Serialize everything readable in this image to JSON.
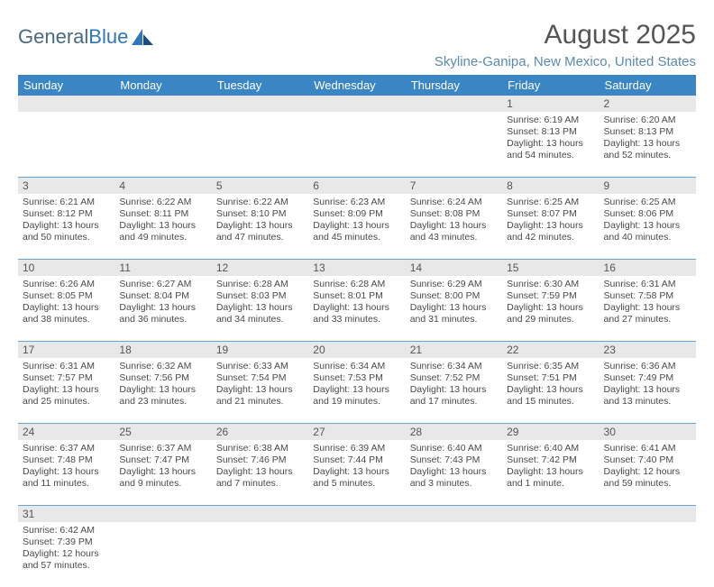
{
  "logo": {
    "text1": "General",
    "text2": "Blue"
  },
  "title": "August 2025",
  "subtitle": "Skyline-Ganipa, New Mexico, United States",
  "accent_color": "#3a86c5",
  "header_bg": "#e8e8e8",
  "rule_color": "#6aa3d0",
  "day_names": [
    "Sunday",
    "Monday",
    "Tuesday",
    "Wednesday",
    "Thursday",
    "Friday",
    "Saturday"
  ],
  "weeks": [
    [
      null,
      null,
      null,
      null,
      null,
      {
        "d": "1",
        "sr": "Sunrise: 6:19 AM",
        "ss": "Sunset: 8:13 PM",
        "dl": "Daylight: 13 hours and 54 minutes."
      },
      {
        "d": "2",
        "sr": "Sunrise: 6:20 AM",
        "ss": "Sunset: 8:13 PM",
        "dl": "Daylight: 13 hours and 52 minutes."
      }
    ],
    [
      {
        "d": "3",
        "sr": "Sunrise: 6:21 AM",
        "ss": "Sunset: 8:12 PM",
        "dl": "Daylight: 13 hours and 50 minutes."
      },
      {
        "d": "4",
        "sr": "Sunrise: 6:22 AM",
        "ss": "Sunset: 8:11 PM",
        "dl": "Daylight: 13 hours and 49 minutes."
      },
      {
        "d": "5",
        "sr": "Sunrise: 6:22 AM",
        "ss": "Sunset: 8:10 PM",
        "dl": "Daylight: 13 hours and 47 minutes."
      },
      {
        "d": "6",
        "sr": "Sunrise: 6:23 AM",
        "ss": "Sunset: 8:09 PM",
        "dl": "Daylight: 13 hours and 45 minutes."
      },
      {
        "d": "7",
        "sr": "Sunrise: 6:24 AM",
        "ss": "Sunset: 8:08 PM",
        "dl": "Daylight: 13 hours and 43 minutes."
      },
      {
        "d": "8",
        "sr": "Sunrise: 6:25 AM",
        "ss": "Sunset: 8:07 PM",
        "dl": "Daylight: 13 hours and 42 minutes."
      },
      {
        "d": "9",
        "sr": "Sunrise: 6:25 AM",
        "ss": "Sunset: 8:06 PM",
        "dl": "Daylight: 13 hours and 40 minutes."
      }
    ],
    [
      {
        "d": "10",
        "sr": "Sunrise: 6:26 AM",
        "ss": "Sunset: 8:05 PM",
        "dl": "Daylight: 13 hours and 38 minutes."
      },
      {
        "d": "11",
        "sr": "Sunrise: 6:27 AM",
        "ss": "Sunset: 8:04 PM",
        "dl": "Daylight: 13 hours and 36 minutes."
      },
      {
        "d": "12",
        "sr": "Sunrise: 6:28 AM",
        "ss": "Sunset: 8:03 PM",
        "dl": "Daylight: 13 hours and 34 minutes."
      },
      {
        "d": "13",
        "sr": "Sunrise: 6:28 AM",
        "ss": "Sunset: 8:01 PM",
        "dl": "Daylight: 13 hours and 33 minutes."
      },
      {
        "d": "14",
        "sr": "Sunrise: 6:29 AM",
        "ss": "Sunset: 8:00 PM",
        "dl": "Daylight: 13 hours and 31 minutes."
      },
      {
        "d": "15",
        "sr": "Sunrise: 6:30 AM",
        "ss": "Sunset: 7:59 PM",
        "dl": "Daylight: 13 hours and 29 minutes."
      },
      {
        "d": "16",
        "sr": "Sunrise: 6:31 AM",
        "ss": "Sunset: 7:58 PM",
        "dl": "Daylight: 13 hours and 27 minutes."
      }
    ],
    [
      {
        "d": "17",
        "sr": "Sunrise: 6:31 AM",
        "ss": "Sunset: 7:57 PM",
        "dl": "Daylight: 13 hours and 25 minutes."
      },
      {
        "d": "18",
        "sr": "Sunrise: 6:32 AM",
        "ss": "Sunset: 7:56 PM",
        "dl": "Daylight: 13 hours and 23 minutes."
      },
      {
        "d": "19",
        "sr": "Sunrise: 6:33 AM",
        "ss": "Sunset: 7:54 PM",
        "dl": "Daylight: 13 hours and 21 minutes."
      },
      {
        "d": "20",
        "sr": "Sunrise: 6:34 AM",
        "ss": "Sunset: 7:53 PM",
        "dl": "Daylight: 13 hours and 19 minutes."
      },
      {
        "d": "21",
        "sr": "Sunrise: 6:34 AM",
        "ss": "Sunset: 7:52 PM",
        "dl": "Daylight: 13 hours and 17 minutes."
      },
      {
        "d": "22",
        "sr": "Sunrise: 6:35 AM",
        "ss": "Sunset: 7:51 PM",
        "dl": "Daylight: 13 hours and 15 minutes."
      },
      {
        "d": "23",
        "sr": "Sunrise: 6:36 AM",
        "ss": "Sunset: 7:49 PM",
        "dl": "Daylight: 13 hours and 13 minutes."
      }
    ],
    [
      {
        "d": "24",
        "sr": "Sunrise: 6:37 AM",
        "ss": "Sunset: 7:48 PM",
        "dl": "Daylight: 13 hours and 11 minutes."
      },
      {
        "d": "25",
        "sr": "Sunrise: 6:37 AM",
        "ss": "Sunset: 7:47 PM",
        "dl": "Daylight: 13 hours and 9 minutes."
      },
      {
        "d": "26",
        "sr": "Sunrise: 6:38 AM",
        "ss": "Sunset: 7:46 PM",
        "dl": "Daylight: 13 hours and 7 minutes."
      },
      {
        "d": "27",
        "sr": "Sunrise: 6:39 AM",
        "ss": "Sunset: 7:44 PM",
        "dl": "Daylight: 13 hours and 5 minutes."
      },
      {
        "d": "28",
        "sr": "Sunrise: 6:40 AM",
        "ss": "Sunset: 7:43 PM",
        "dl": "Daylight: 13 hours and 3 minutes."
      },
      {
        "d": "29",
        "sr": "Sunrise: 6:40 AM",
        "ss": "Sunset: 7:42 PM",
        "dl": "Daylight: 13 hours and 1 minute."
      },
      {
        "d": "30",
        "sr": "Sunrise: 6:41 AM",
        "ss": "Sunset: 7:40 PM",
        "dl": "Daylight: 12 hours and 59 minutes."
      }
    ],
    [
      {
        "d": "31",
        "sr": "Sunrise: 6:42 AM",
        "ss": "Sunset: 7:39 PM",
        "dl": "Daylight: 12 hours and 57 minutes."
      },
      null,
      null,
      null,
      null,
      null,
      null
    ]
  ]
}
